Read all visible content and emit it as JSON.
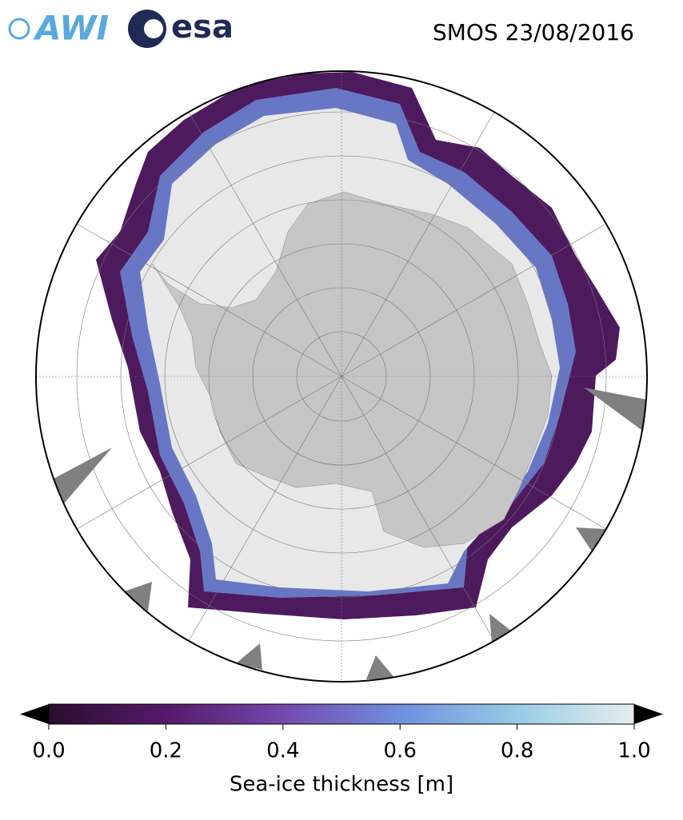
{
  "header": {
    "logos": [
      "AWI",
      "esa"
    ],
    "title": "SMOS 23/08/2016"
  },
  "colorbar": {
    "label": "Sea-ice thickness [m]",
    "lim": [
      0,
      1
    ],
    "ticks": [
      {
        "value": 0,
        "label": "0.0"
      },
      0.2,
      0.4,
      0.6,
      0.8,
      {
        "value": 1,
        "label": "1.0"
      }
    ],
    "colors": [
      "#2b0d2f",
      "#55196a",
      "#7448ad",
      "#6f8fdf",
      "#98cbe5",
      "#e3eeee"
    ]
  }
}
